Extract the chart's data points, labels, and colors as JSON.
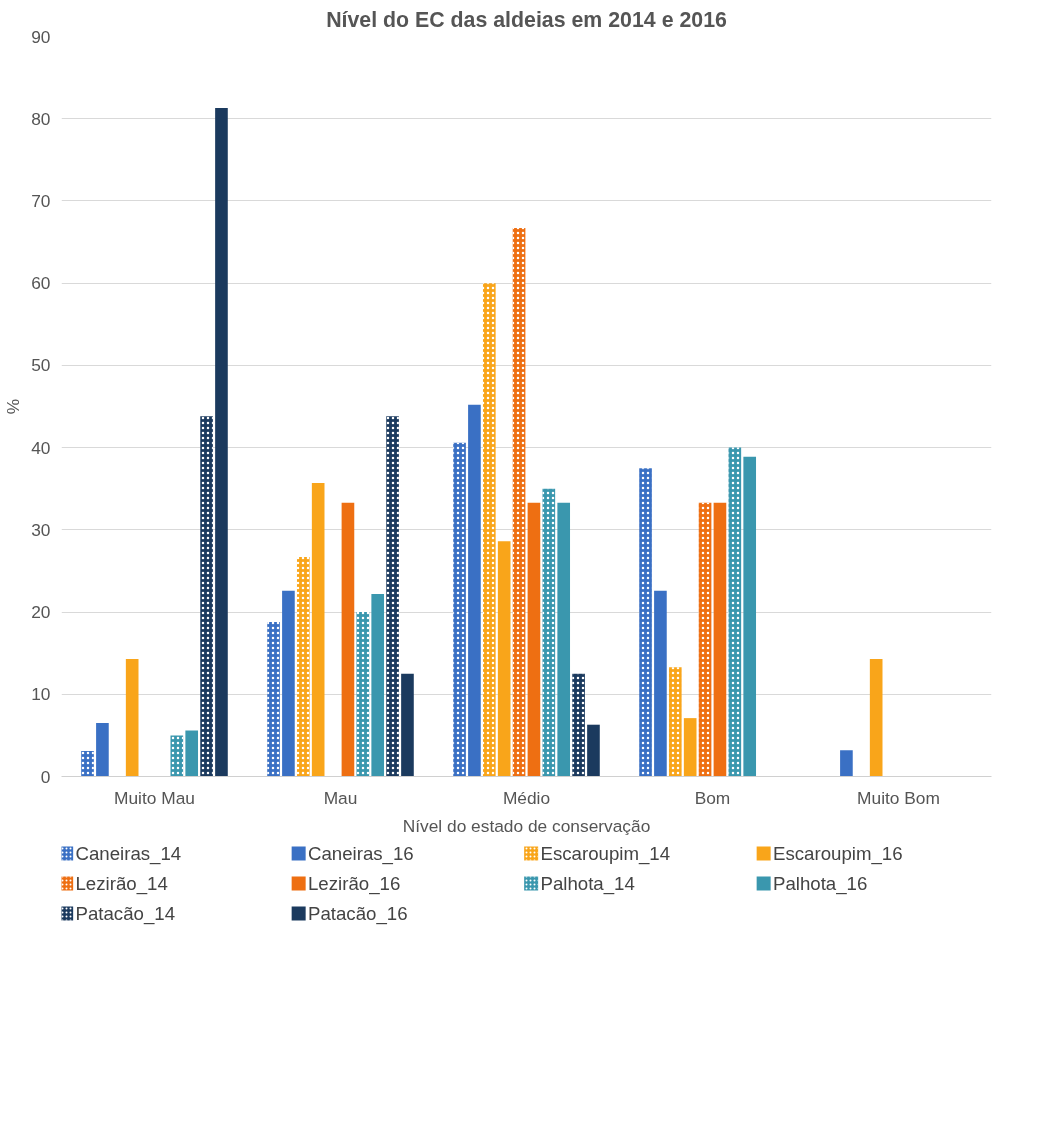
{
  "chart_data": {
    "type": "bar",
    "title": "Nível do EC das aldeias em 2014 e 2016",
    "xlabel": "Nível do estado de conservação",
    "ylabel": "%",
    "categories": [
      "Muito Mau",
      "Mau",
      "Médio",
      "Bom",
      "Muito Bom"
    ],
    "series": [
      {
        "name": "Caneiras_14",
        "color": "#3a70c4",
        "values": [
          3.1,
          18.8,
          40.6,
          37.5,
          0
        ]
      },
      {
        "name": "Caneiras_16",
        "color": "#3a70c4",
        "values": [
          6.5,
          22.6,
          45.2,
          22.6,
          3.2
        ]
      },
      {
        "name": "Escaroupim_14",
        "color": "#f9a51a",
        "values": [
          0,
          26.7,
          60,
          13.3,
          0
        ]
      },
      {
        "name": "Escaroupim_16",
        "color": "#f9a51a",
        "values": [
          14.3,
          35.7,
          28.6,
          7.1,
          14.3
        ]
      },
      {
        "name": "Lezirão_14",
        "color": "#ee6f12",
        "values": [
          0,
          0,
          66.7,
          33.3,
          0
        ]
      },
      {
        "name": "Lezirão_16",
        "color": "#ee6f12",
        "values": [
          0,
          33.3,
          33.3,
          33.3,
          0
        ]
      },
      {
        "name": "Palhota_14",
        "color": "#3a97ae",
        "values": [
          5,
          20,
          35,
          40,
          0
        ]
      },
      {
        "name": "Palhota_16",
        "color": "#3a97ae",
        "values": [
          5.6,
          22.2,
          33.3,
          38.9,
          0
        ]
      },
      {
        "name": "Patacão_14",
        "color": "#1b3a5e",
        "values": [
          43.8,
          43.8,
          12.5,
          0,
          0
        ]
      },
      {
        "name": "Patacão_16",
        "color": "#1b3a5e",
        "values": [
          81.3,
          12.5,
          6.3,
          0,
          0
        ]
      }
    ],
    "ylim": [
      0,
      90
    ],
    "yticks": [
      0,
      10,
      20,
      30,
      40,
      50,
      60,
      70,
      80,
      90
    ],
    "grid": "y",
    "legend": "bottom"
  }
}
